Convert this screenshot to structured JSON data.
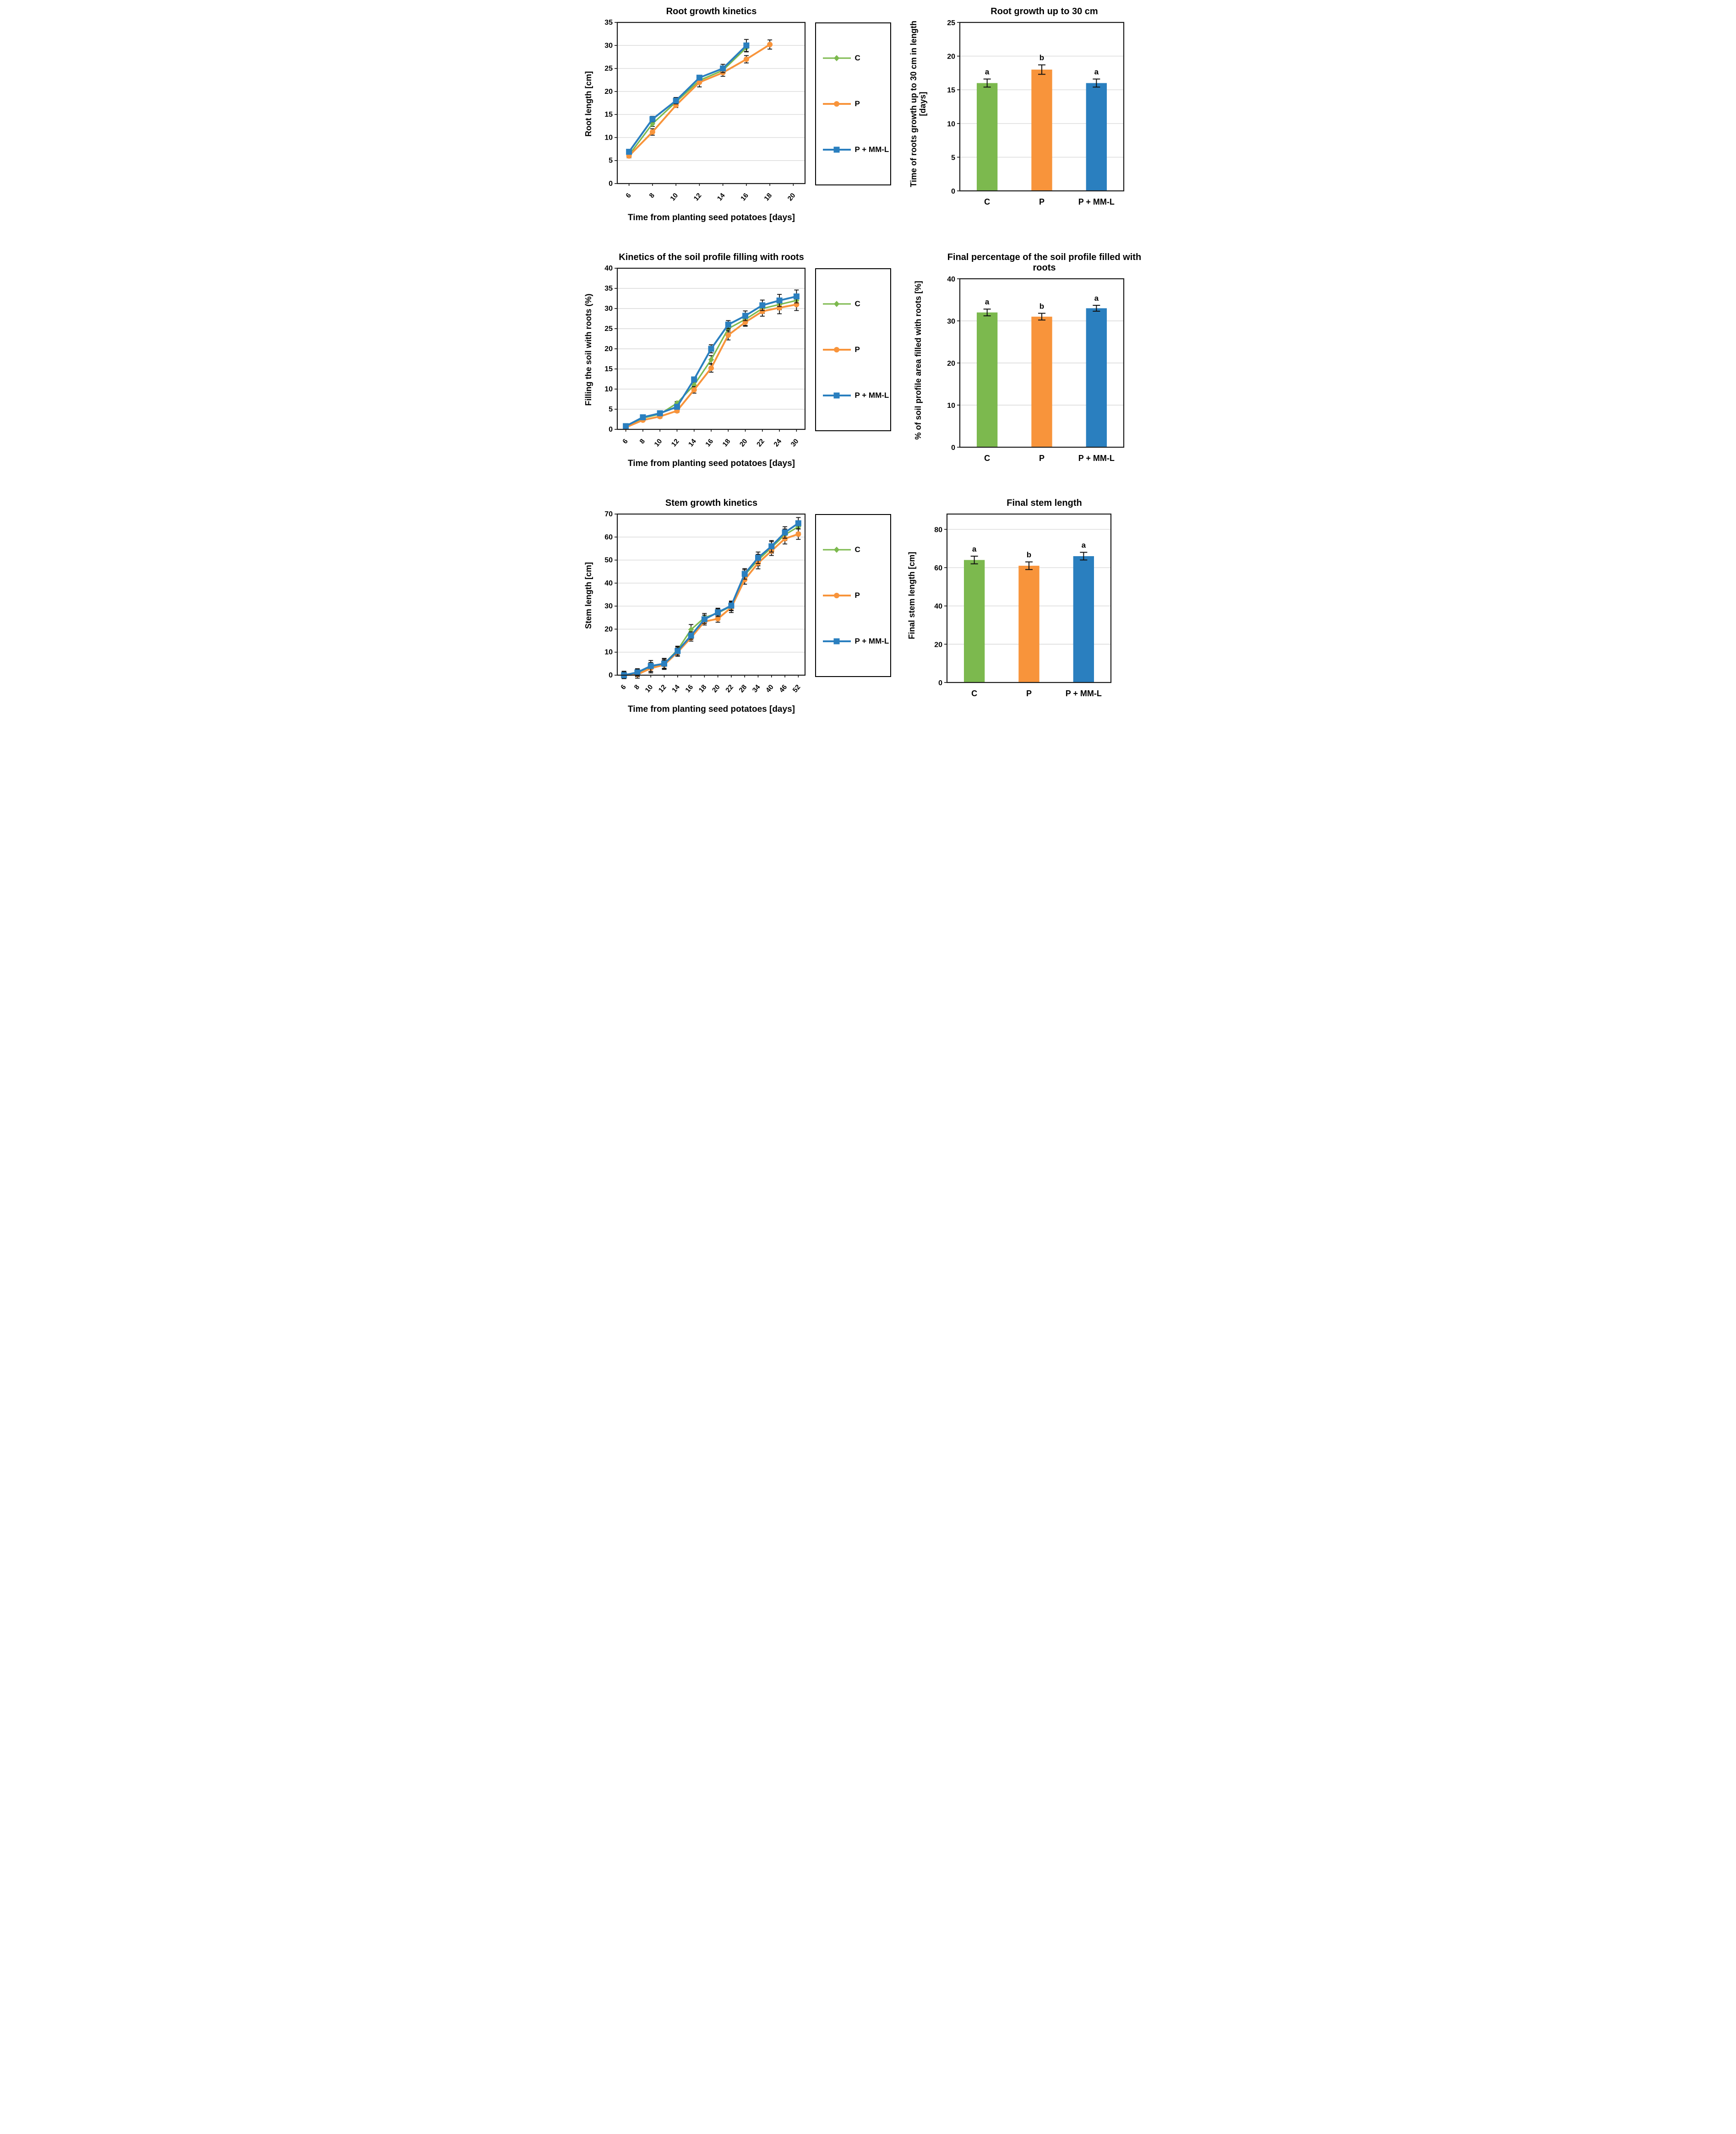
{
  "figure": {
    "description": "Six-panel potato growth figure: three kinetics line charts with legends (left) and three summary bar charts (right) comparing treatments C, P and P + MM-L"
  },
  "colors": {
    "c_green": "#7CB94E",
    "p_orange": "#F8943B",
    "pmml_blue": "#2A7FBF",
    "grid": "#D9D9D9",
    "axis": "#1A1A1A",
    "error_bar": "#111111"
  },
  "chart_data": [
    {
      "id": "root-growth-kinetics",
      "type": "line",
      "title": "Root growth kinetics",
      "xlabel": "Time from planting seed potatoes [days]",
      "ylabel": "Root length [cm]",
      "ylim": [
        0,
        35
      ],
      "ytick": 5,
      "grid": true,
      "legend_position": "right",
      "categories": [
        6,
        8,
        10,
        12,
        14,
        16,
        18,
        20
      ],
      "series": [
        {
          "name": "C",
          "marker": "diamond",
          "color": "#7CB94E",
          "values": [
            6.2,
            13.0,
            17.7,
            22.4,
            24.6,
            29.5,
            null,
            null
          ],
          "errors": [
            0.4,
            0.6,
            0.6,
            0.5,
            0.6,
            0.9,
            null,
            null
          ]
        },
        {
          "name": "P",
          "marker": "circle",
          "color": "#F8943B",
          "values": [
            6.0,
            11.2,
            17.0,
            22.0,
            24.1,
            27.0,
            30.2,
            null
          ],
          "errors": [
            0.4,
            0.7,
            0.5,
            1.0,
            0.8,
            0.8,
            1.0,
            null
          ]
        },
        {
          "name": "P + MM-L",
          "marker": "square",
          "color": "#2A7FBF",
          "values": [
            6.9,
            14.0,
            18.0,
            23.0,
            25.0,
            30.0,
            null,
            null
          ],
          "errors": [
            0.4,
            0.6,
            0.7,
            0.5,
            0.9,
            1.3,
            null,
            null
          ]
        }
      ]
    },
    {
      "id": "root-growth-up-to-30cm",
      "type": "bar",
      "title": "Root growth up to 30 cm",
      "xlabel": "",
      "ylabel": "Time of roots growth up to 30 cm in length [days]",
      "ylim": [
        0,
        25
      ],
      "ytick": 5,
      "grid": true,
      "categories": [
        "C",
        "P",
        "P + MM-L"
      ],
      "values": [
        16,
        18,
        16
      ],
      "errors": [
        0.6,
        0.7,
        0.6
      ],
      "letters": [
        "a",
        "b",
        "a"
      ],
      "bar_colors": [
        "#7CB94E",
        "#F8943B",
        "#2A7FBF"
      ]
    },
    {
      "id": "soil-profile-filling-kinetics",
      "type": "line",
      "title": "Kinetics of the soil profile filling with roots",
      "xlabel": "Time from planting seed potatoes [days]",
      "ylabel": "Filling the soil with roots (%)",
      "ylim": [
        0,
        40
      ],
      "ytick": 5,
      "grid": true,
      "legend_position": "right",
      "categories": [
        6,
        8,
        10,
        12,
        14,
        16,
        18,
        20,
        22,
        24,
        30
      ],
      "series": [
        {
          "name": "C",
          "marker": "diamond",
          "color": "#7CB94E",
          "values": [
            0.7,
            2.8,
            3.8,
            6.5,
            11.0,
            17.3,
            25.0,
            27.3,
            30.0,
            31.0,
            32.0
          ],
          "errors": [
            0.2,
            0.3,
            0.4,
            0.4,
            0.6,
            1.0,
            0.8,
            1.5,
            1.2,
            1.3,
            1.2
          ]
        },
        {
          "name": "P",
          "marker": "circle",
          "color": "#F8943B",
          "values": [
            0.5,
            2.3,
            3.2,
            4.6,
            9.8,
            15.2,
            23.4,
            26.6,
            29.3,
            30.2,
            31.0
          ],
          "errors": [
            0.2,
            0.3,
            0.4,
            0.4,
            0.8,
            1.0,
            1.2,
            1.0,
            1.2,
            1.5,
            1.5
          ]
        },
        {
          "name": "P + MM-L",
          "marker": "square",
          "color": "#2A7FBF",
          "values": [
            0.8,
            3.0,
            4.0,
            5.6,
            12.4,
            20.0,
            26.0,
            28.2,
            30.8,
            32.0,
            33.0
          ],
          "errors": [
            0.2,
            0.3,
            0.4,
            0.5,
            0.6,
            1.0,
            1.0,
            1.2,
            1.3,
            1.5,
            1.6
          ]
        }
      ]
    },
    {
      "id": "final-soil-profile-percentage",
      "type": "bar",
      "title": "Final percentage of the soil profile filled with roots",
      "xlabel": "",
      "ylabel": "% of soil profile area filled with roots [%]",
      "ylim": [
        0,
        40
      ],
      "ytick": 10,
      "grid": true,
      "categories": [
        "C",
        "P",
        "P + MM-L"
      ],
      "values": [
        32,
        31,
        33
      ],
      "errors": [
        0.8,
        0.8,
        0.7
      ],
      "letters": [
        "a",
        "b",
        "a"
      ],
      "bar_colors": [
        "#7CB94E",
        "#F8943B",
        "#2A7FBF"
      ]
    },
    {
      "id": "stem-growth-kinetics",
      "type": "line",
      "title": "Stem growth kinetics",
      "xlabel": "Time from planting seed potatoes [days]",
      "ylabel": "Stem length [cm]",
      "ylim": [
        0,
        70
      ],
      "ytick": 10,
      "grid": true,
      "legend_position": "right",
      "categories": [
        6,
        8,
        10,
        12,
        14,
        16,
        18,
        20,
        22,
        28,
        34,
        40,
        46,
        52
      ],
      "series": [
        {
          "name": "C",
          "marker": "diamond",
          "color": "#7CB94E",
          "values": [
            0.2,
            1.0,
            3.5,
            5.0,
            11.0,
            19.8,
            25.0,
            27.0,
            30.0,
            43.5,
            50.0,
            55.5,
            61.0,
            64.5
          ],
          "errors": [
            1.5,
            1.6,
            2.0,
            2.0,
            1.6,
            2.2,
            1.8,
            1.8,
            2.0,
            2.3,
            2.5,
            2.5,
            2.5,
            2.5
          ]
        },
        {
          "name": "P",
          "marker": "circle",
          "color": "#F8943B",
          "values": [
            0.0,
            0.3,
            3.0,
            4.5,
            10.0,
            16.3,
            23.3,
            24.5,
            29.4,
            41.5,
            48.7,
            54.0,
            59.3,
            61.3
          ],
          "errors": [
            1.5,
            1.6,
            2.0,
            2.0,
            1.8,
            1.5,
            1.5,
            1.5,
            2.2,
            2.0,
            2.5,
            2.0,
            2.3,
            2.3
          ]
        },
        {
          "name": "P + MM-L",
          "marker": "square",
          "color": "#2A7FBF",
          "values": [
            0.0,
            1.2,
            4.0,
            5.0,
            10.5,
            17.2,
            24.3,
            27.3,
            30.2,
            44.0,
            51.0,
            56.0,
            62.0,
            66.0
          ],
          "errors": [
            1.5,
            1.6,
            2.4,
            2.3,
            1.8,
            1.6,
            1.8,
            1.8,
            2.0,
            2.3,
            2.5,
            2.5,
            2.5,
            2.5
          ]
        }
      ]
    },
    {
      "id": "final-stem-length",
      "type": "bar",
      "title": "Final stem length",
      "xlabel": "",
      "ylabel": "Final stem length [cm]",
      "ylim": [
        0,
        88
      ],
      "ytick": 20,
      "grid": true,
      "categories": [
        "C",
        "P",
        "P + MM-L"
      ],
      "values": [
        64,
        61,
        66
      ],
      "errors": [
        2.0,
        2.0,
        2.0
      ],
      "letters": [
        "a",
        "b",
        "a"
      ],
      "bar_colors": [
        "#7CB94E",
        "#F8943B",
        "#2A7FBF"
      ]
    }
  ]
}
